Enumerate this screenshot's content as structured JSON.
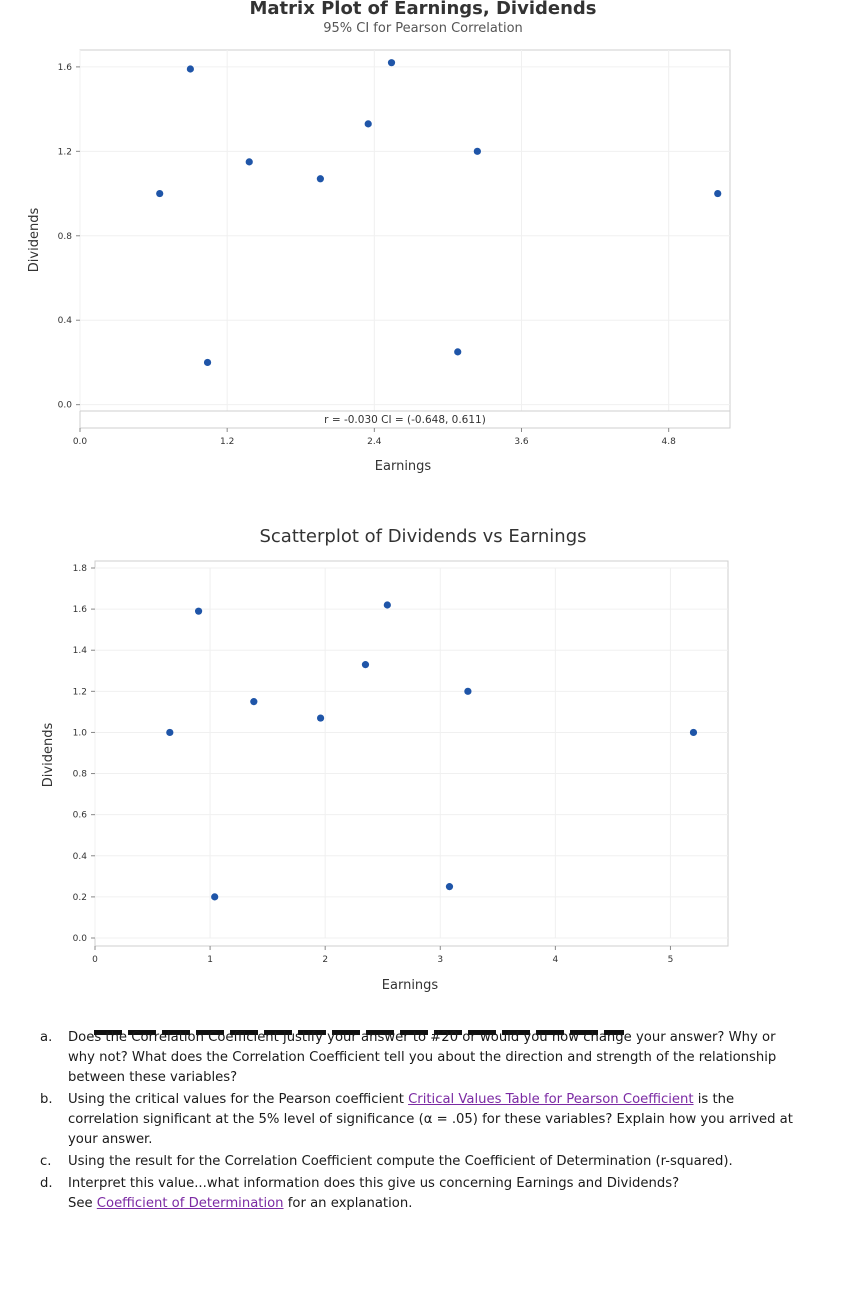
{
  "chart_data": [
    {
      "type": "scatter",
      "title": "Matrix Plot of Earnings, Dividends",
      "subtitle": "95% CI for Pearson Correlation",
      "xlabel": "Earnings",
      "ylabel": "Dividends",
      "xlim": [
        0,
        5.3
      ],
      "ylim": [
        -0.03,
        1.68
      ],
      "xticks": [
        "0.0",
        "1.2",
        "2.4",
        "3.6",
        "4.8"
      ],
      "yticks": [
        "1.6",
        "1.2",
        "0.8",
        "0.4",
        "0.0"
      ],
      "annotation": "r = -0.030  CI = (-0.648, 0.611)",
      "grid": true,
      "points": [
        {
          "x": 0.65,
          "y": 1.0
        },
        {
          "x": 0.9,
          "y": 1.59
        },
        {
          "x": 1.04,
          "y": 0.2
        },
        {
          "x": 1.38,
          "y": 1.15
        },
        {
          "x": 1.96,
          "y": 1.07
        },
        {
          "x": 2.35,
          "y": 1.33
        },
        {
          "x": 2.54,
          "y": 1.62
        },
        {
          "x": 3.08,
          "y": 0.25
        },
        {
          "x": 3.24,
          "y": 1.2
        },
        {
          "x": 5.2,
          "y": 1.0
        }
      ]
    },
    {
      "type": "scatter",
      "title": "Scatterplot of Dividends vs Earnings",
      "xlabel": "Earnings",
      "ylabel": "Dividends",
      "xlim": [
        0,
        5.5
      ],
      "ylim": [
        0,
        1.8
      ],
      "xticks": [
        "0",
        "1",
        "2",
        "3",
        "4",
        "5"
      ],
      "yticks": [
        "1.8",
        "1.6",
        "1.4",
        "1.2",
        "1.0",
        "0.8",
        "0.6",
        "0.4",
        "0.2",
        "0.0"
      ],
      "grid": true,
      "points": [
        {
          "x": 0.65,
          "y": 1.0
        },
        {
          "x": 0.9,
          "y": 1.59
        },
        {
          "x": 1.04,
          "y": 0.2
        },
        {
          "x": 1.38,
          "y": 1.15
        },
        {
          "x": 1.96,
          "y": 1.07
        },
        {
          "x": 2.35,
          "y": 1.33
        },
        {
          "x": 2.54,
          "y": 1.62
        },
        {
          "x": 3.08,
          "y": 0.25
        },
        {
          "x": 3.24,
          "y": 1.2
        },
        {
          "x": 5.2,
          "y": 1.0
        }
      ]
    }
  ],
  "questions": [
    {
      "letter": "a.",
      "text": "Does the Correlation Coefficient justify your answer to #20 or would you now change your answer? Why or why not? What does the Correlation Coefficient tell you about the direction and strength of the relationship between these variables?"
    },
    {
      "letter": "b.",
      "pre": "Using the critical values for the Pearson coefficient ",
      "link": "Critical Values Table for Pearson Coefficient",
      "post": " is the correlation significant at the 5% level of significance (α = .05) for these variables? Explain how you arrived at your answer."
    },
    {
      "letter": "c.",
      "text": "Using the result for the Correlation Coefficient compute the Coefficient of Determination (r-squared)."
    },
    {
      "letter": "d.",
      "text": "Interpret this value...what information does this give us concerning Earnings and Dividends?",
      "pre": "See ",
      "link": "Coefficient of Determination",
      "post": " for an explanation."
    }
  ],
  "colors": {
    "point": "#1f55a8",
    "link": "#7b2aa3"
  }
}
